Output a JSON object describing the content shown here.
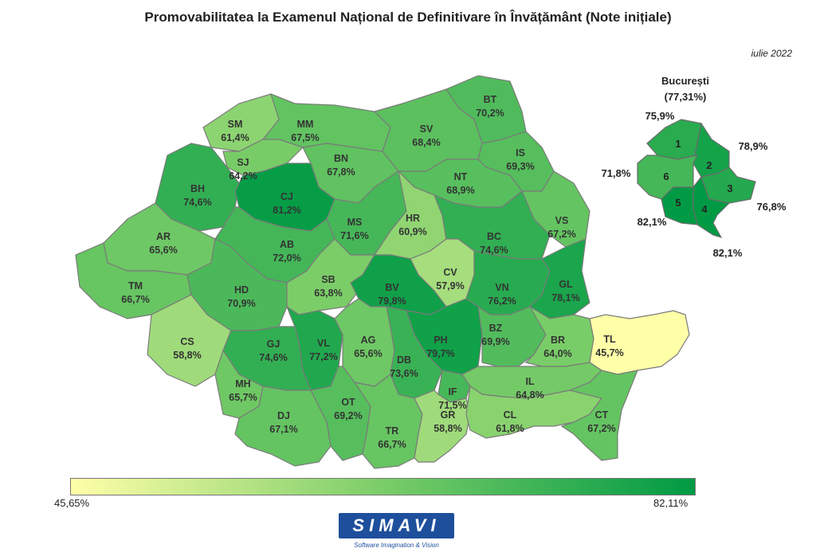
{
  "title": "Promovabilitatea la Examenul Național de Definitivare în Învățământ (Note inițiale)",
  "subtitle": "iulie 2022",
  "bucharest": {
    "title": "București",
    "value": "(77,31%)",
    "sectors": [
      {
        "n": "1",
        "value": "75,9%",
        "rate": 75.9
      },
      {
        "n": "2",
        "value": "78,9%",
        "rate": 78.9
      },
      {
        "n": "3",
        "value": "76,8%",
        "rate": 76.8
      },
      {
        "n": "4",
        "value": "82,1%",
        "rate": 82.1
      },
      {
        "n": "5",
        "value": "82,1%",
        "rate": 82.1
      },
      {
        "n": "6",
        "value": "71,8%",
        "rate": 71.8
      }
    ]
  },
  "counties": [
    {
      "code": "SM",
      "value": "61,4%",
      "rate": 61.4
    },
    {
      "code": "MM",
      "value": "67,5%",
      "rate": 67.5
    },
    {
      "code": "BT",
      "value": "70,2%",
      "rate": 70.2
    },
    {
      "code": "SV",
      "value": "68,4%",
      "rate": 68.4
    },
    {
      "code": "SJ",
      "value": "64,2%",
      "rate": 64.2
    },
    {
      "code": "BN",
      "value": "67,8%",
      "rate": 67.8
    },
    {
      "code": "IS",
      "value": "69,3%",
      "rate": 69.3
    },
    {
      "code": "BH",
      "value": "74,6%",
      "rate": 74.6
    },
    {
      "code": "CJ",
      "value": "81,2%",
      "rate": 81.2
    },
    {
      "code": "NT",
      "value": "68,9%",
      "rate": 68.9
    },
    {
      "code": "MS",
      "value": "71,6%",
      "rate": 71.6
    },
    {
      "code": "HR",
      "value": "60,9%",
      "rate": 60.9
    },
    {
      "code": "VS",
      "value": "67,2%",
      "rate": 67.2
    },
    {
      "code": "BC",
      "value": "74,6%",
      "rate": 74.6
    },
    {
      "code": "AR",
      "value": "65,6%",
      "rate": 65.6
    },
    {
      "code": "AB",
      "value": "72,0%",
      "rate": 72.0
    },
    {
      "code": "CV",
      "value": "57,9%",
      "rate": 57.9
    },
    {
      "code": "TM",
      "value": "66,7%",
      "rate": 66.7
    },
    {
      "code": "HD",
      "value": "70,9%",
      "rate": 70.9
    },
    {
      "code": "SB",
      "value": "63,8%",
      "rate": 63.8
    },
    {
      "code": "BV",
      "value": "79,8%",
      "rate": 79.8
    },
    {
      "code": "VN",
      "value": "76,2%",
      "rate": 76.2
    },
    {
      "code": "GL",
      "value": "78,1%",
      "rate": 78.1
    },
    {
      "code": "CS",
      "value": "58,8%",
      "rate": 58.8
    },
    {
      "code": "VL",
      "value": "77,2%",
      "rate": 77.2
    },
    {
      "code": "AG",
      "value": "65,6%",
      "rate": 65.6
    },
    {
      "code": "PH",
      "value": "79,7%",
      "rate": 79.7
    },
    {
      "code": "BZ",
      "value": "69,9%",
      "rate": 69.9
    },
    {
      "code": "BR",
      "value": "64,0%",
      "rate": 64.0
    },
    {
      "code": "TL",
      "value": "45,7%",
      "rate": 45.7
    },
    {
      "code": "GJ",
      "value": "74,6%",
      "rate": 74.6
    },
    {
      "code": "DB",
      "value": "73,6%",
      "rate": 73.6
    },
    {
      "code": "MH",
      "value": "65,7%",
      "rate": 65.7
    },
    {
      "code": "IF",
      "value": "71,5%",
      "rate": 71.5
    },
    {
      "code": "IL",
      "value": "64,8%",
      "rate": 64.8
    },
    {
      "code": "OT",
      "value": "69,2%",
      "rate": 69.2
    },
    {
      "code": "DJ",
      "value": "67,1%",
      "rate": 67.1
    },
    {
      "code": "TR",
      "value": "66,7%",
      "rate": 66.7
    },
    {
      "code": "GR",
      "value": "58,8%",
      "rate": 58.8
    },
    {
      "code": "CL",
      "value": "61,8%",
      "rate": 61.8
    },
    {
      "code": "CT",
      "value": "67,2%",
      "rate": 67.2
    }
  ],
  "legend": {
    "min_label": "45,65%",
    "max_label": "82,11%",
    "min": 45.65,
    "max": 82.11,
    "color_low": "#ffffa8",
    "color_high": "#009a44"
  },
  "logo": {
    "name": "SIMAVI",
    "tagline": "Software Imagination & Vision"
  }
}
